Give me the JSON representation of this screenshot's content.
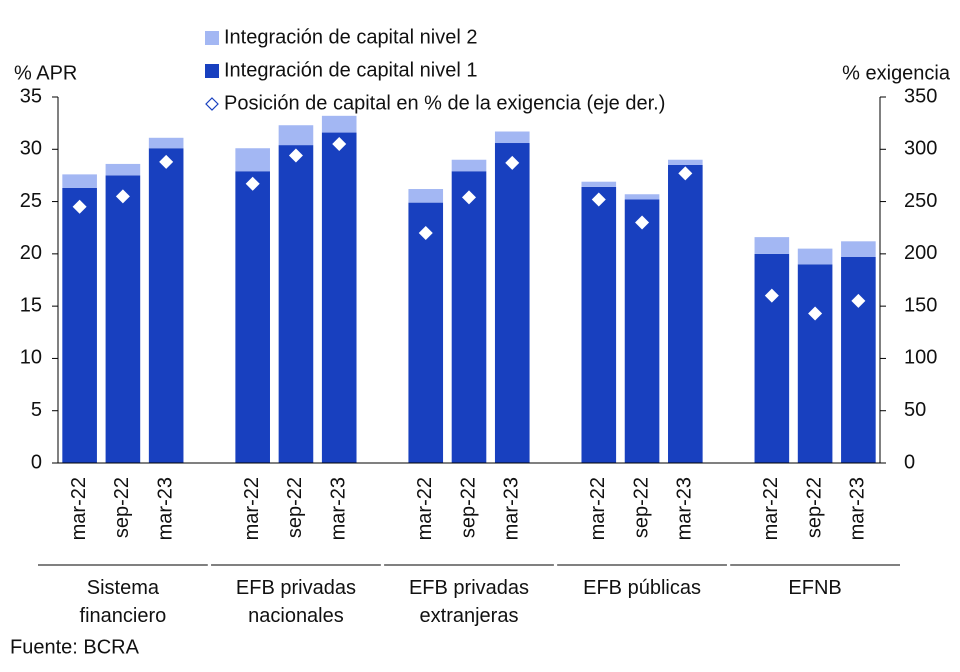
{
  "chart_data": {
    "type": "bar",
    "stacked": true,
    "categories": [
      "mar-22",
      "sep-22",
      "mar-23",
      "mar-22",
      "sep-22",
      "mar-23",
      "mar-22",
      "sep-22",
      "mar-23",
      "mar-22",
      "sep-22",
      "mar-23",
      "mar-22",
      "sep-22",
      "mar-23"
    ],
    "groups": [
      "Sistema financiero",
      "EFB privadas nacionales",
      "EFB privadas extranjeras",
      "EFB públicas",
      "EFNB"
    ],
    "series": [
      {
        "name": "Integración de capital nivel 2",
        "color": "#a3b7f3",
        "type": "bar",
        "values": [
          1.3,
          1.1,
          1.0,
          2.2,
          1.9,
          1.6,
          1.3,
          1.1,
          1.1,
          0.5,
          0.5,
          0.5,
          1.6,
          1.5,
          1.5
        ]
      },
      {
        "name": "Integración de capital nivel 1",
        "color": "#1840bf",
        "type": "bar",
        "values": [
          26.3,
          27.5,
          30.1,
          27.9,
          30.4,
          31.6,
          24.9,
          27.9,
          30.6,
          26.4,
          25.2,
          28.5,
          20.0,
          19.0,
          19.7
        ]
      },
      {
        "name": "Posición de capital en % de la exigencia (eje der.)",
        "color": "#ffffff",
        "type": "scatter",
        "axis": "y2",
        "values": [
          245,
          255,
          288,
          267,
          294,
          305,
          220,
          254,
          287,
          252,
          230,
          277,
          160,
          143,
          155
        ]
      }
    ],
    "ylabel": "% APR",
    "y2label": "% exigencia",
    "ylim": [
      0,
      35
    ],
    "yticks": [
      0,
      5,
      10,
      15,
      20,
      25,
      30,
      35
    ],
    "y2lim": [
      0,
      350
    ],
    "y2ticks": [
      0,
      50,
      100,
      150,
      200,
      250,
      300,
      350
    ],
    "source": "Fuente: BCRA"
  }
}
